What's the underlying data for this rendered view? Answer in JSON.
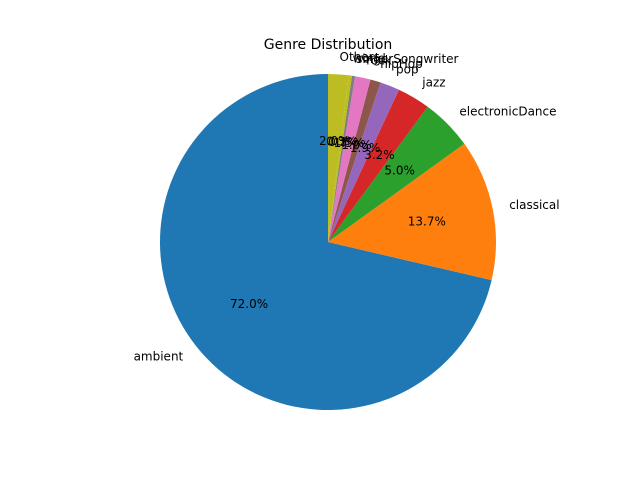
{
  "chart_data": {
    "type": "pie",
    "title": "Genre Distribution",
    "start_angle_deg": 90,
    "direction": "counterclockwise",
    "categories": [
      "ambient",
      "classical",
      "electronicDance",
      "jazz",
      "pop",
      "hipHop",
      "rock",
      "singerSongwriter",
      "world",
      "Others"
    ],
    "values": [
      72.0,
      13.7,
      5.0,
      3.2,
      1.9,
      1.0,
      1.5,
      0.3,
      0.3,
      2.0
    ],
    "percent_labels": [
      "72.0%",
      "13.7%",
      "5.0%",
      "3.2%",
      "1.9%",
      "1.0%",
      "1.5%",
      "0.3%",
      "0.3%",
      "2.0%"
    ],
    "colors": [
      "#1f77b4",
      "#ff7f0e",
      "#2ca02c",
      "#d62728",
      "#9467bd",
      "#8c564b",
      "#e377c2",
      "#7f7f7f",
      "#bcbd22",
      "#bcbd22"
    ]
  }
}
